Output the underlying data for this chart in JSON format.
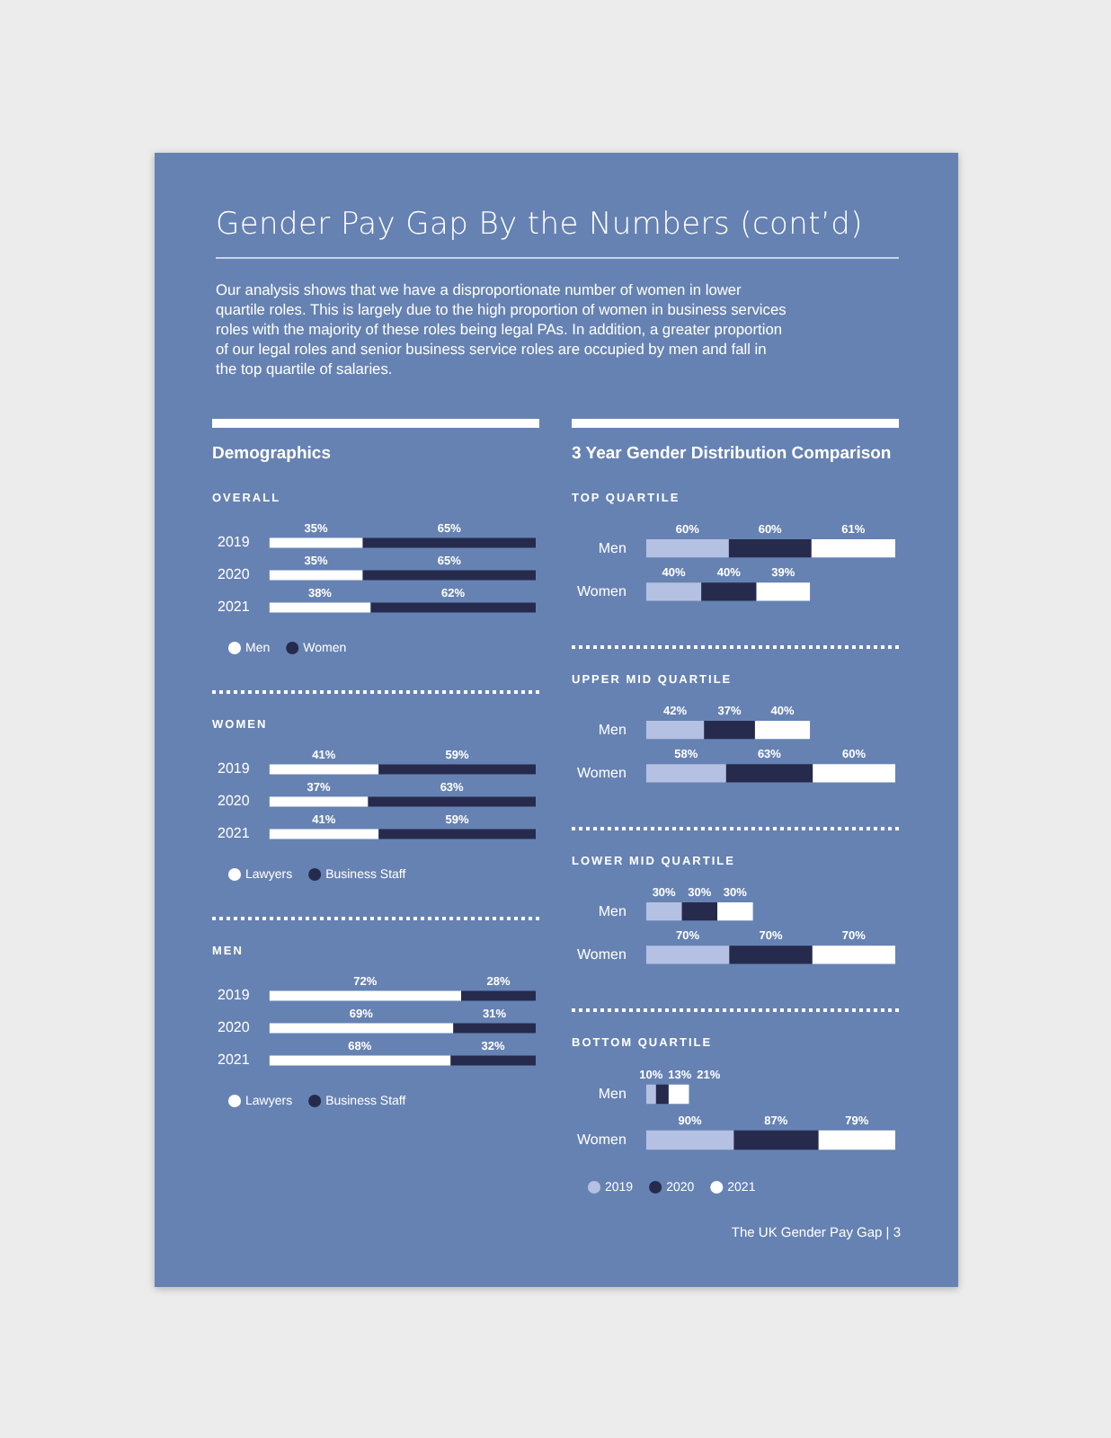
{
  "chart_data": [
    {
      "type": "other",
      "title": "Gender Pay Gap By the Numbers (cont’d)",
      "subtitle": "Our analysis shows that we have a disproportionate number of women in lower quartile roles. This is largely due to the high proportion of women in business services roles with the majority of these roles being legal PAs. In addition, a greater proportion of our legal roles and senior business service roles are occupied by men and fall in the top quartile of salaries.",
      "annotations": [
        "The UK Gender Pay Gap | 3"
      ]
    },
    {
      "type": "bar",
      "title": "Demographics",
      "subtitle": "OVERALL",
      "orientation": "horizontal",
      "stacked": true,
      "legend": "bottom",
      "categories": [
        "2019",
        "2020",
        "2021"
      ],
      "series": [
        {
          "name": "Men",
          "color": "#ffffff",
          "values": [
            35,
            35,
            38
          ],
          "value_labels": [
            "35%",
            "35%",
            "38%"
          ]
        },
        {
          "name": "Women",
          "color": "#262b4d",
          "values": [
            65,
            65,
            62
          ],
          "value_labels": [
            "65%",
            "65%",
            "62%"
          ]
        }
      ]
    },
    {
      "type": "bar",
      "subtitle": "WOMEN",
      "orientation": "horizontal",
      "stacked": true,
      "legend": "bottom",
      "categories": [
        "2019",
        "2020",
        "2021"
      ],
      "series": [
        {
          "name": "Lawyers",
          "color": "#ffffff",
          "values": [
            41,
            37,
            41
          ],
          "value_labels": [
            "41%",
            "37%",
            "41%"
          ]
        },
        {
          "name": "Business Staff",
          "color": "#262b4d",
          "values": [
            59,
            63,
            59
          ],
          "value_labels": [
            "59%",
            "63%",
            "59%"
          ]
        }
      ]
    },
    {
      "type": "bar",
      "subtitle": "MEN",
      "orientation": "horizontal",
      "stacked": true,
      "legend": "bottom",
      "categories": [
        "2019",
        "2020",
        "2021"
      ],
      "series": [
        {
          "name": "Lawyers",
          "color": "#ffffff",
          "values": [
            72,
            69,
            68
          ],
          "value_labels": [
            "72%",
            "69%",
            "68%"
          ]
        },
        {
          "name": "Business Staff",
          "color": "#262b4d",
          "values": [
            28,
            31,
            32
          ],
          "value_labels": [
            "28%",
            "31%",
            "32%"
          ]
        }
      ]
    },
    {
      "type": "bar",
      "title": "3 Year Gender Distribution Comparison",
      "subtitle": "TOP QUARTILE",
      "orientation": "horizontal",
      "stacked": true,
      "categories": [
        "Men",
        "Women"
      ],
      "series": [
        {
          "color": "#b5c1e2",
          "values": [
            60,
            40
          ],
          "value_labels": [
            "60%",
            "40%"
          ]
        },
        {
          "color": "#262b4d",
          "values": [
            60,
            40
          ],
          "value_labels": [
            "60%",
            "40%"
          ]
        },
        {
          "color": "#ffffff",
          "values": [
            61,
            39
          ],
          "value_labels": [
            "61%",
            "39%"
          ]
        }
      ]
    },
    {
      "type": "bar",
      "subtitle": "UPPER MID QUARTILE",
      "orientation": "horizontal",
      "stacked": true,
      "categories": [
        "Men",
        "Women"
      ],
      "series": [
        {
          "color": "#b5c1e2",
          "values": [
            42,
            58
          ],
          "value_labels": [
            "42%",
            "58%"
          ]
        },
        {
          "color": "#262b4d",
          "values": [
            37,
            63
          ],
          "value_labels": [
            "37%",
            "63%"
          ]
        },
        {
          "color": "#ffffff",
          "values": [
            40,
            60
          ],
          "value_labels": [
            "40%",
            "60%"
          ]
        }
      ]
    },
    {
      "type": "bar",
      "subtitle": "LOWER MID QUARTILE",
      "orientation": "horizontal",
      "stacked": true,
      "categories": [
        "Men",
        "Women"
      ],
      "series": [
        {
          "color": "#b5c1e2",
          "values": [
            30,
            70
          ],
          "value_labels": [
            "30%",
            "70%"
          ]
        },
        {
          "color": "#262b4d",
          "values": [
            30,
            70
          ],
          "value_labels": [
            "30%",
            "70%"
          ]
        },
        {
          "color": "#ffffff",
          "values": [
            30,
            70
          ],
          "value_labels": [
            "30%",
            "70%"
          ]
        }
      ]
    },
    {
      "type": "bar",
      "subtitle": "BOTTOM QUARTILE",
      "orientation": "horizontal",
      "stacked": true,
      "legend": "bottom",
      "categories": [
        "Men",
        "Women"
      ],
      "series": [
        {
          "name": "2019",
          "color": "#b5c1e2",
          "values": [
            10,
            90
          ],
          "value_labels": [
            "10%",
            "90%"
          ]
        },
        {
          "name": "2020",
          "color": "#262b4d",
          "values": [
            13,
            87
          ],
          "value_labels": [
            "13%",
            "87%"
          ]
        },
        {
          "name": "2021",
          "color": "#ffffff",
          "values": [
            21,
            79
          ],
          "value_labels": [
            "21%",
            "79%"
          ]
        }
      ]
    }
  ]
}
